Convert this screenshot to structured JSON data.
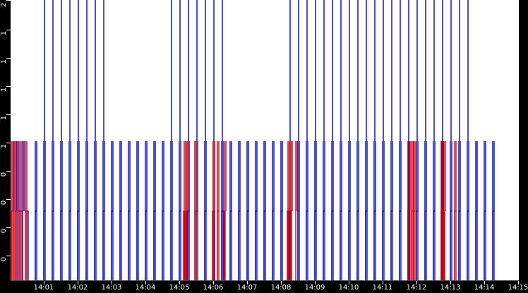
{
  "chart_data": {
    "type": "line",
    "style": "step pulses",
    "title": "",
    "xlabel": "",
    "ylabel": "",
    "y_tick_labels": [
      "2",
      "1",
      "1",
      "1",
      "1",
      "1",
      "0",
      "0",
      "0",
      "0"
    ],
    "x_tick_labels": [
      "14:01",
      "14:02",
      "14:03",
      "14:04",
      "14:05",
      "14:06",
      "14:07",
      "14:08",
      "14:09",
      "14:10",
      "14:11",
      "14:12",
      "14:13",
      "14:14",
      "14:15"
    ],
    "ylim": [
      0,
      2
    ],
    "grid": false,
    "colors": {
      "series_blue": "#0000dd",
      "series_red": "#dd0000",
      "background": "#ffffff",
      "axis": "#000000"
    },
    "series": [
      {
        "name": "blue",
        "color": "#0000dd",
        "full_height_pulses_x": [
          63,
          75,
          87,
          99,
          111,
          123,
          135,
          147,
          243,
          255,
          267,
          279,
          291,
          303,
          315,
          411,
          423,
          435,
          447,
          459,
          471,
          483,
          495,
          507,
          519,
          531,
          543,
          555,
          567,
          579,
          591,
          603,
          615,
          627,
          639,
          651,
          663
        ],
        "level1_pulses_x": [
          20,
          25,
          33,
          51,
          63,
          75,
          87,
          99,
          111,
          123,
          135,
          147,
          159,
          171,
          183,
          195,
          207,
          219,
          231,
          243,
          255,
          267,
          279,
          291,
          303,
          315,
          327,
          339,
          351,
          363,
          375,
          387,
          399,
          411,
          423,
          435,
          447,
          459,
          471,
          483,
          495,
          507,
          519,
          531,
          543,
          555,
          567,
          579,
          591,
          603,
          615,
          627,
          639,
          651,
          663,
          675,
          687,
          699
        ],
        "half_pulses_x": [
          27,
          39,
          51,
          63,
          75,
          87,
          99,
          111,
          123,
          135,
          147,
          159,
          171,
          183,
          195,
          207,
          219,
          231,
          243,
          255,
          267,
          279,
          291,
          303,
          315,
          327,
          339,
          351,
          363,
          375,
          387,
          399,
          411,
          423,
          435,
          447,
          459,
          471,
          483,
          495,
          507,
          519,
          531,
          543,
          555,
          567,
          579,
          591,
          603,
          615,
          627,
          639,
          651,
          663,
          675,
          687,
          699
        ]
      },
      {
        "name": "red",
        "color": "#dd0000",
        "level1_pulses_x": [
          17,
          22,
          29,
          37,
          262,
          265,
          277,
          303,
          309,
          319,
          409,
          413,
          420,
          580,
          584,
          587,
          626,
          630,
          645
        ],
        "half_pulses_x": [
          18,
          23,
          30,
          37,
          261,
          264,
          277,
          302,
          309,
          318,
          408,
          412,
          580,
          584,
          587,
          626,
          629,
          645
        ]
      }
    ]
  }
}
